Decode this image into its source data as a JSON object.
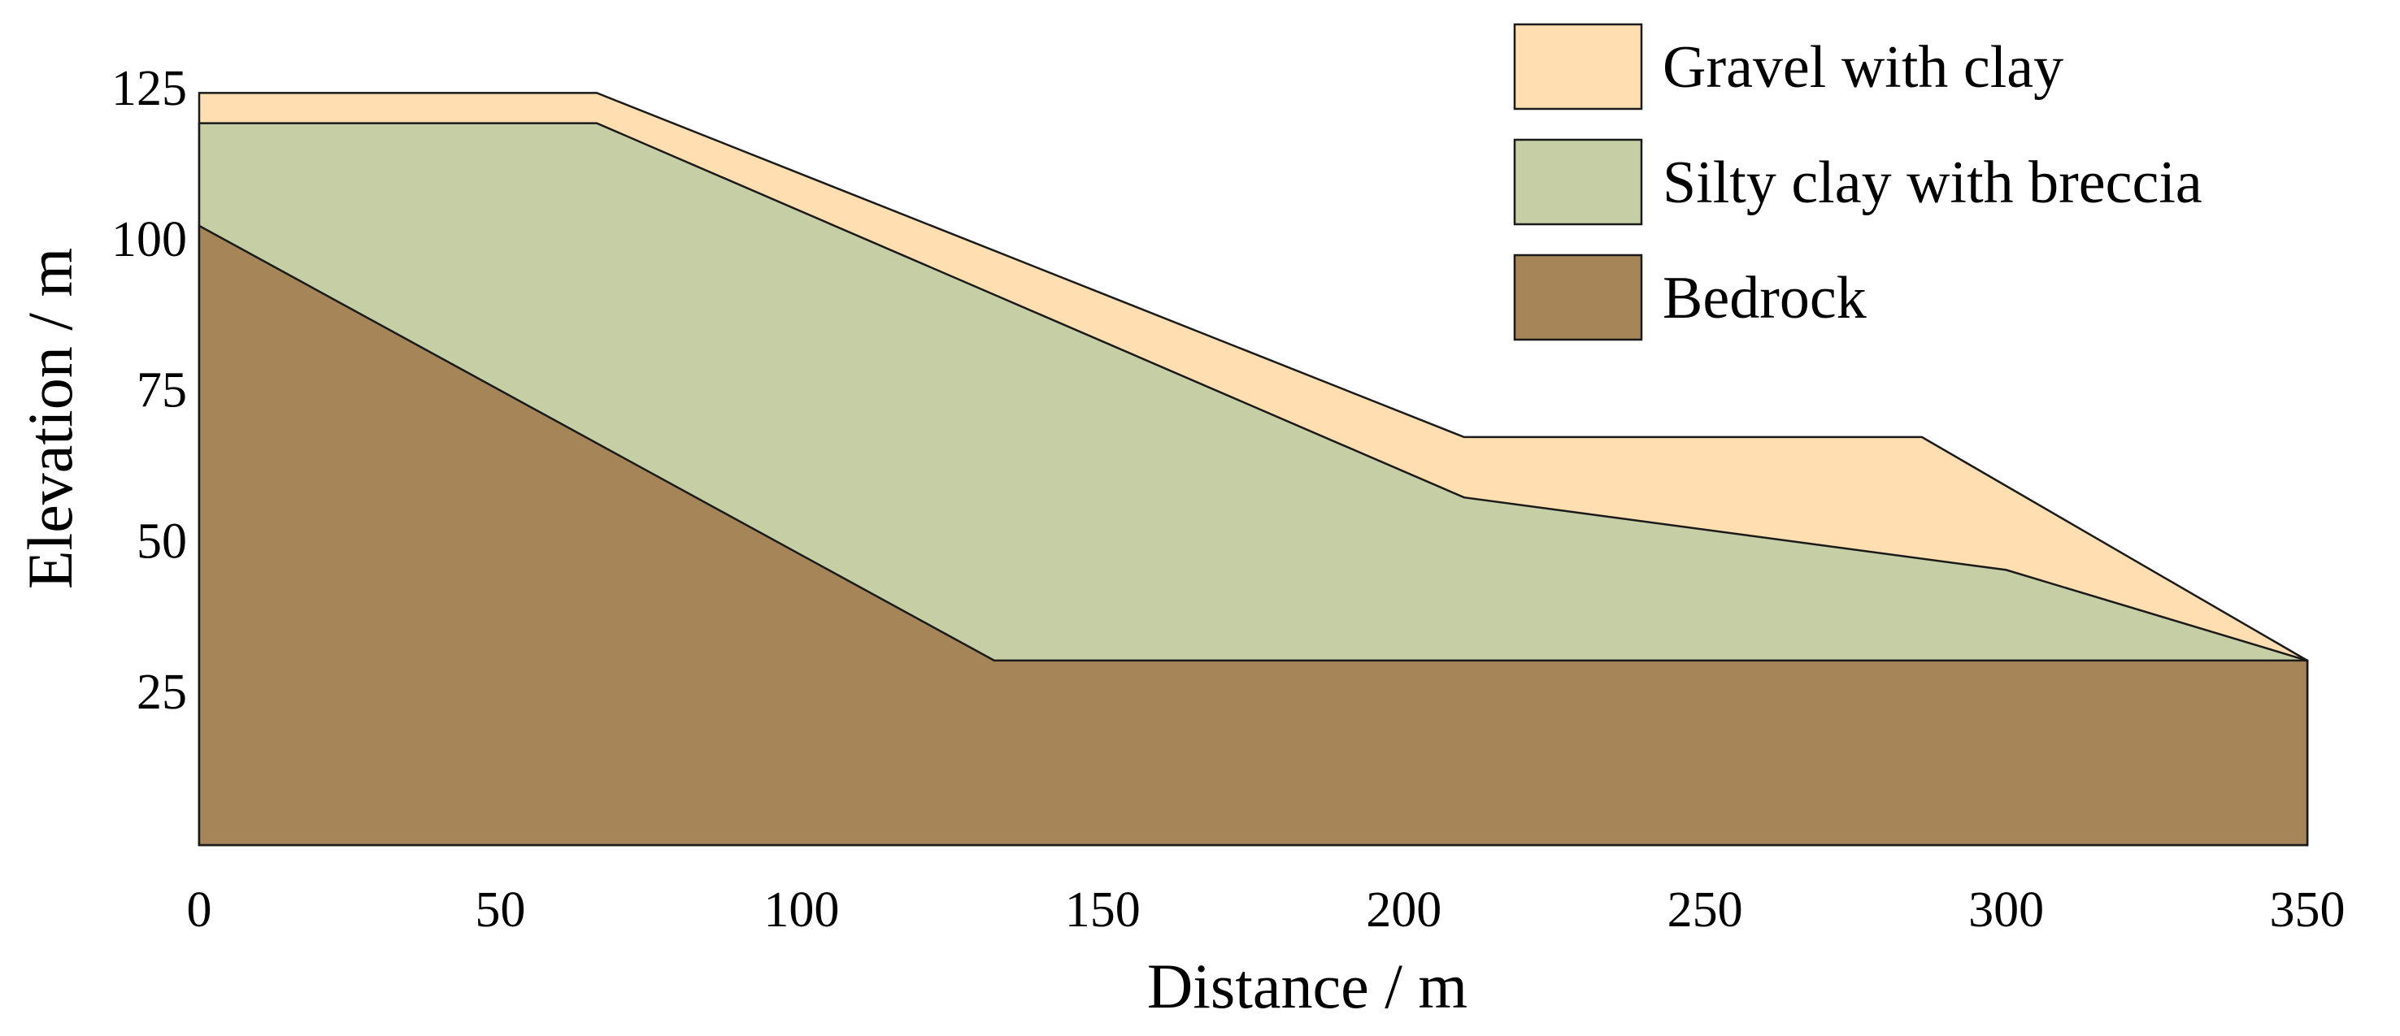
{
  "chart_data": {
    "type": "area",
    "xlabel": "Distance / m",
    "ylabel": "Elevation / m",
    "xlim": [
      0,
      350
    ],
    "ylim": [
      -32,
      127
    ],
    "x_ticks": [
      "0",
      "50",
      "100",
      "150",
      "200",
      "250",
      "300",
      "350"
    ],
    "y_ticks": [
      "25",
      "50",
      "75",
      "100",
      "125"
    ],
    "grid": false,
    "legend_position": "top-right",
    "layers": [
      {
        "name": "Bedrock",
        "color": "#a68659",
        "top_surface": [
          [
            0,
            102
          ],
          [
            132,
            30
          ],
          [
            350,
            30
          ]
        ]
      },
      {
        "name": "Silty clay with breccia",
        "color": "#c5cea5",
        "top_surface": [
          [
            0,
            119
          ],
          [
            66,
            119
          ],
          [
            210,
            57
          ],
          [
            300,
            45
          ],
          [
            350,
            30
          ]
        ]
      },
      {
        "name": "Gravel with clay",
        "color": "#ffdfb1",
        "top_surface": [
          [
            0,
            124
          ],
          [
            66,
            124
          ],
          [
            210,
            67
          ],
          [
            286,
            67
          ],
          [
            350,
            30
          ]
        ]
      }
    ],
    "legend": [
      {
        "label": "Gravel with clay",
        "color": "#ffdfb1"
      },
      {
        "label": "Silty clay with breccia",
        "color": "#c5cea5"
      },
      {
        "label": "Bedrock",
        "color": "#a68659"
      }
    ]
  }
}
